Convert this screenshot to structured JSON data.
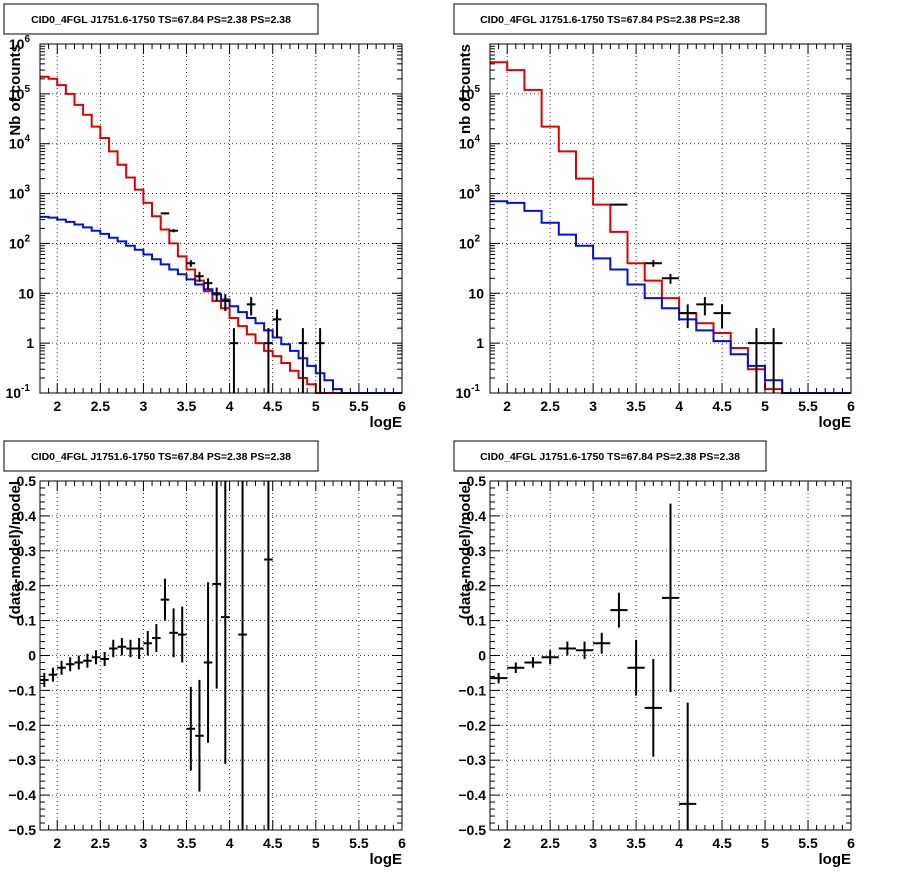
{
  "chart_data": [
    {
      "type": "line",
      "panel": "top-left",
      "title": "CID0_4FGL J1751.6-1750 TS=67.84 PS=2.38 PS=2.38",
      "xlabel": "logE",
      "ylabel": "Nb of counts",
      "xlim": [
        1.8,
        6.0
      ],
      "ylim": [
        0.1,
        1000000
      ],
      "yscale": "log",
      "grid": true,
      "x_ticks": [
        "2",
        "2.5",
        "3",
        "3.5",
        "4",
        "4.5",
        "5",
        "5.5",
        "6"
      ],
      "y_ticks": [
        "10^-1",
        "1",
        "10",
        "10^2",
        "10^3",
        "10^4",
        "10^5",
        "10^6"
      ],
      "bin_width": 0.1,
      "series": [
        {
          "color": "#e00000",
          "style": "histogram",
          "x": [
            1.8,
            1.9,
            2.0,
            2.1,
            2.2,
            2.3,
            2.4,
            2.5,
            2.6,
            2.7,
            2.8,
            2.9,
            3.0,
            3.1,
            3.2,
            3.3,
            3.4,
            3.5,
            3.6,
            3.7,
            3.8,
            3.9,
            4.0,
            4.1,
            4.2,
            4.3,
            4.4,
            4.5,
            4.6,
            4.7,
            4.8,
            4.9,
            5.0,
            5.1,
            5.2,
            5.3,
            5.4,
            5.5,
            5.6,
            5.7,
            5.8,
            5.9
          ],
          "values": [
            220000,
            200000,
            150000,
            100000,
            60000,
            38000,
            22000,
            13000,
            7000,
            3800,
            2100,
            1200,
            650,
            350,
            190,
            100,
            55,
            30,
            18,
            11,
            7,
            5,
            3.2,
            2.2,
            1.5,
            1.0,
            0.7,
            0.55,
            0.4,
            0.28,
            0.2,
            0.15,
            0.1,
            0.1,
            0.1,
            0.1,
            0.1,
            0.1,
            0.1,
            0.1,
            0.1,
            0.1
          ]
        },
        {
          "color": "#0010e0",
          "style": "histogram",
          "x": [
            1.8,
            1.9,
            2.0,
            2.1,
            2.2,
            2.3,
            2.4,
            2.5,
            2.6,
            2.7,
            2.8,
            2.9,
            3.0,
            3.1,
            3.2,
            3.3,
            3.4,
            3.5,
            3.6,
            3.7,
            3.8,
            3.9,
            4.0,
            4.1,
            4.2,
            4.3,
            4.4,
            4.5,
            4.6,
            4.7,
            4.8,
            4.9,
            5.0,
            5.1,
            5.2,
            5.3,
            5.4,
            5.5,
            5.6,
            5.7,
            5.8,
            5.9
          ],
          "values": [
            340,
            330,
            300,
            270,
            240,
            210,
            180,
            155,
            130,
            110,
            90,
            75,
            60,
            48,
            38,
            30,
            24,
            19,
            15,
            12,
            9.5,
            7.5,
            5.5,
            4.2,
            3.2,
            2.5,
            1.8,
            1.3,
            0.95,
            0.7,
            0.5,
            0.35,
            0.25,
            0.18,
            0.12,
            0.1,
            0.1,
            0.1,
            0.1,
            0.1,
            0.1,
            0.1
          ]
        },
        {
          "color": "#000000",
          "style": "points",
          "x": [
            3.25,
            3.35,
            3.55,
            3.65,
            3.75,
            3.85,
            3.95,
            4.05,
            4.25,
            4.45,
            4.55,
            4.85,
            5.05
          ],
          "values": [
            400,
            180,
            40,
            22,
            16,
            10,
            7,
            1,
            6,
            1,
            3,
            1,
            1
          ],
          "err_low": [
            20,
            13,
            6,
            5,
            4,
            3,
            2.6,
            1,
            2.4,
            1,
            1.7,
            1,
            1
          ],
          "err_high": [
            20,
            13,
            6,
            5,
            4,
            3,
            2.6,
            1,
            2.4,
            1,
            1.7,
            1,
            1
          ]
        }
      ]
    },
    {
      "type": "line",
      "panel": "top-right",
      "title": "CID0_4FGL J1751.6-1750 TS=67.84 PS=2.38 PS=2.38",
      "xlabel": "logE",
      "ylabel": "nb of counts",
      "xlim": [
        1.8,
        6.0
      ],
      "ylim": [
        0.1,
        1000000
      ],
      "yscale": "log",
      "grid": true,
      "x_ticks": [
        "2",
        "2.5",
        "3",
        "3.5",
        "4",
        "4.5",
        "5",
        "5.5",
        "6"
      ],
      "y_ticks": [
        "10^-1",
        "1",
        "10",
        "10^2",
        "10^3",
        "10^4",
        "10^5"
      ],
      "bin_width": 0.2,
      "series": [
        {
          "color": "#e00000",
          "style": "histogram",
          "x": [
            1.8,
            2.0,
            2.2,
            2.4,
            2.6,
            2.8,
            3.0,
            3.2,
            3.4,
            3.6,
            3.8,
            4.0,
            4.2,
            4.4,
            4.6,
            4.8,
            5.0,
            5.2,
            5.4,
            5.6,
            5.8
          ],
          "values": [
            430000,
            300000,
            120000,
            22000,
            7000,
            2000,
            600,
            170,
            40,
            18,
            8,
            4,
            2.5,
            1.6,
            0.8,
            0.3,
            0.12,
            0.1,
            0.1,
            0.1,
            0.1
          ]
        },
        {
          "color": "#0010e0",
          "style": "histogram",
          "x": [
            1.8,
            2.0,
            2.2,
            2.4,
            2.6,
            2.8,
            3.0,
            3.2,
            3.4,
            3.6,
            3.8,
            4.0,
            4.2,
            4.4,
            4.6,
            4.8,
            5.0,
            5.2,
            5.4,
            5.6,
            5.8
          ],
          "values": [
            700,
            650,
            450,
            260,
            150,
            90,
            50,
            30,
            15,
            8,
            5,
            3,
            1.8,
            1.1,
            0.6,
            0.35,
            0.18,
            0.1,
            0.1,
            0.1,
            0.1
          ]
        },
        {
          "color": "#000000",
          "style": "points",
          "x": [
            3.3,
            3.7,
            3.9,
            4.1,
            4.3,
            4.5,
            4.9,
            5.1
          ],
          "values": [
            600,
            40,
            20,
            4,
            6,
            4,
            1,
            1
          ],
          "err_low": [
            25,
            6,
            4.5,
            2,
            2.4,
            2,
            1,
            1
          ],
          "err_high": [
            25,
            6,
            4.5,
            2,
            2.4,
            2,
            1,
            1
          ]
        }
      ]
    },
    {
      "type": "scatter",
      "panel": "bottom-left",
      "title": "CID0_4FGL J1751.6-1750 TS=67.84 PS=2.38 PS=2.38",
      "xlabel": "logE",
      "ylabel": "(data-model)/model",
      "xlim": [
        1.8,
        6.0
      ],
      "ylim": [
        -0.5,
        0.5
      ],
      "grid": true,
      "x_ticks": [
        "2",
        "2.5",
        "3",
        "3.5",
        "4",
        "4.5",
        "5",
        "5.5",
        "6"
      ],
      "y_ticks": [
        "-0.5",
        "-0.4",
        "-0.3",
        "-0.2",
        "-0.1",
        "0",
        "0.1",
        "0.2",
        "0.3",
        "0.4",
        "0.5"
      ],
      "bin_width": 0.1,
      "series": [
        {
          "color": "#000000",
          "style": "points",
          "x": [
            1.85,
            1.95,
            2.05,
            2.15,
            2.25,
            2.35,
            2.45,
            2.55,
            2.65,
            2.75,
            2.85,
            2.95,
            3.05,
            3.15,
            3.25,
            3.35,
            3.45,
            3.55,
            3.65,
            3.75,
            3.85,
            3.95,
            4.15,
            4.45
          ],
          "values": [
            -0.07,
            -0.055,
            -0.035,
            -0.025,
            -0.02,
            -0.015,
            -0.005,
            -0.01,
            0.02,
            0.025,
            0.02,
            0.02,
            0.035,
            0.05,
            0.16,
            0.065,
            0.06,
            -0.21,
            -0.23,
            -0.02,
            0.205,
            0.11,
            0.06,
            0.275
          ],
          "err": [
            0.02,
            0.02,
            0.02,
            0.02,
            0.02,
            0.02,
            0.02,
            0.02,
            0.025,
            0.025,
            0.025,
            0.03,
            0.035,
            0.04,
            0.06,
            0.07,
            0.08,
            0.12,
            0.16,
            0.23,
            0.3,
            0.42,
            0.6,
            0.9
          ]
        }
      ]
    },
    {
      "type": "scatter",
      "panel": "bottom-right",
      "title": "CID0_4FGL J1751.6-1750 TS=67.84 PS=2.38 PS=2.38",
      "xlabel": "logE",
      "ylabel": "(data-model)/model",
      "xlim": [
        1.8,
        6.0
      ],
      "ylim": [
        -0.5,
        0.5
      ],
      "grid": true,
      "x_ticks": [
        "2",
        "2.5",
        "3",
        "3.5",
        "4",
        "4.5",
        "5",
        "5.5",
        "6"
      ],
      "y_ticks": [
        "-0.5",
        "-0.4",
        "-0.3",
        "-0.2",
        "-0.1",
        "0",
        "0.1",
        "0.2",
        "0.3",
        "0.4",
        "0.5"
      ],
      "bin_width": 0.2,
      "series": [
        {
          "color": "#000000",
          "style": "points",
          "x": [
            1.9,
            2.1,
            2.3,
            2.5,
            2.7,
            2.9,
            3.1,
            3.3,
            3.5,
            3.7,
            3.9,
            4.1
          ],
          "values": [
            -0.065,
            -0.035,
            -0.02,
            -0.005,
            0.02,
            0.015,
            0.035,
            0.13,
            -0.035,
            -0.15,
            0.165,
            -0.425
          ],
          "err": [
            0.015,
            0.015,
            0.015,
            0.02,
            0.02,
            0.025,
            0.03,
            0.05,
            0.08,
            0.14,
            0.27,
            0.29
          ]
        }
      ]
    }
  ]
}
